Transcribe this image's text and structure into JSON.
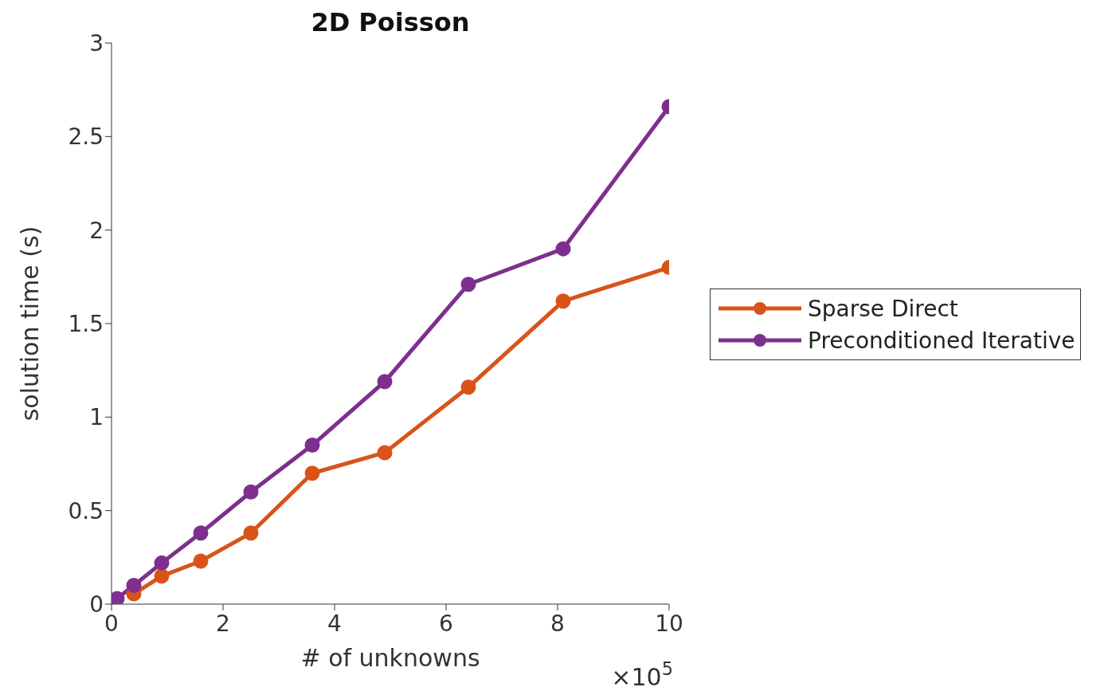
{
  "chart_data": {
    "type": "line",
    "title": "2D Poisson",
    "xlabel": "# of unknowns",
    "ylabel": "solution time (s)",
    "annotations": [
      "×10$^{5}$"
    ],
    "x": [
      0.01,
      0.1,
      0.4,
      0.9,
      1.6,
      2.5,
      3.6,
      4.9,
      6.4,
      8.1,
      10
    ],
    "series": [
      {
        "name": "Sparse Direct",
        "color": "#d95319",
        "values": [
          null,
          null,
          0.055,
          0.15,
          0.23,
          0.38,
          0.7,
          0.81,
          1.16,
          1.62,
          1.8
        ]
      },
      {
        "name": "Preconditioned Iterative",
        "color": "#7e2f8e",
        "values": [
          0,
          0.03,
          0.1,
          0.22,
          0.38,
          0.6,
          0.85,
          1.19,
          1.71,
          1.9,
          2.66
        ]
      }
    ],
    "xlim": [
      0,
      10
    ],
    "xticks": [
      0,
      2,
      4,
      6,
      8,
      10
    ],
    "ylim": [
      0,
      3
    ],
    "yticks": [
      0,
      0.5,
      1,
      1.5,
      2,
      2.5,
      3
    ],
    "grid": false,
    "legend": "right",
    "marker": "circle",
    "line_style": "solid"
  }
}
